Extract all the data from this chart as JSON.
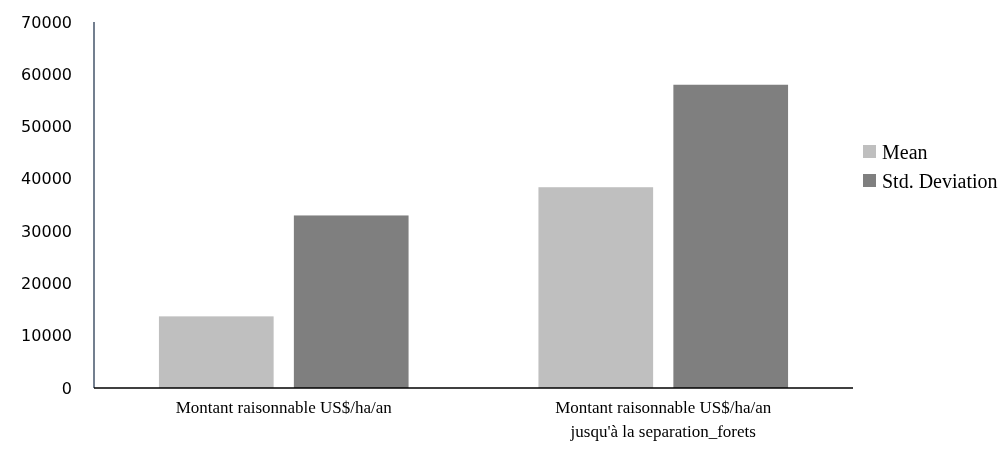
{
  "chart_data": {
    "type": "bar",
    "categories": [
      "Montant raisonnable US$/ha/an",
      "Montant raisonnable US$/ha/an jusqu'à la separation_forets"
    ],
    "series": [
      {
        "name": "Mean",
        "color": "#bfbfbf",
        "values": [
          13700,
          38400
        ]
      },
      {
        "name": "Std. Deviation",
        "color": "#7f7f7f",
        "values": [
          33000,
          58000
        ]
      }
    ],
    "ylim": [
      0,
      70000
    ],
    "yticks": [
      0,
      10000,
      20000,
      30000,
      40000,
      50000,
      60000,
      70000
    ],
    "grid": false,
    "legend": "right"
  }
}
